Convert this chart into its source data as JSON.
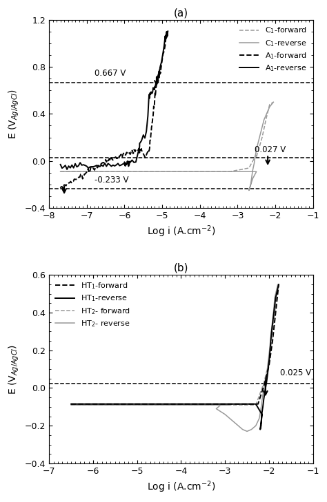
{
  "panel_a": {
    "title": "(a)",
    "xlim": [
      -8,
      -1
    ],
    "ylim": [
      -0.4,
      1.2
    ],
    "xlabel": "Log i (A.cm$^{-2}$)",
    "ylabel": "E (V$_{Ag/AgCl}$)",
    "hlines": [
      0.667,
      0.027,
      -0.233
    ],
    "legend_entries": [
      {
        "label": "C$_1$-forward",
        "color": "#999999",
        "ls": "--"
      },
      {
        "label": "C$_1$-reverse",
        "color": "#999999",
        "ls": "-"
      },
      {
        "label": "A$_1$-forward",
        "color": "#000000",
        "ls": "--"
      },
      {
        "label": "A$_1$-reverse",
        "color": "#000000",
        "ls": "-"
      }
    ]
  },
  "panel_b": {
    "title": "(b)",
    "xlim": [
      -7,
      -1
    ],
    "ylim": [
      -0.4,
      0.6
    ],
    "xlabel": "Log i (A.cm$^{-2}$)",
    "ylabel": "E (V$_{Ag/AgCl}$)",
    "hlines": [
      0.025
    ],
    "legend_entries": [
      {
        "label": "HT$_1$-forward",
        "color": "#000000",
        "ls": "--"
      },
      {
        "label": "HT$_1$-reverse",
        "color": "#000000",
        "ls": "-"
      },
      {
        "label": "HT$_2$- forward",
        "color": "#999999",
        "ls": "--"
      },
      {
        "label": "HT$_2$- reverse",
        "color": "#999999",
        "ls": "-"
      }
    ]
  },
  "colors": {
    "black": "#000000",
    "gray": "#999999"
  }
}
